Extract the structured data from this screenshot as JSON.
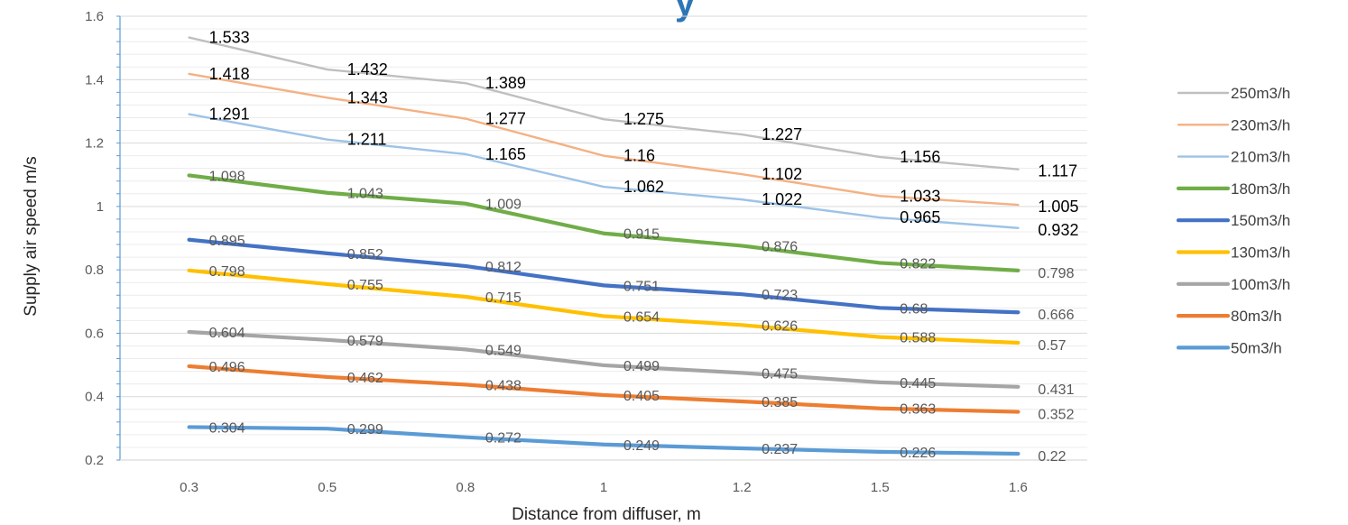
{
  "chart_data": {
    "type": "line",
    "title": "",
    "title_fragment": "y",
    "xlabel": "Distance from diffuser, m",
    "ylabel": "Supply air speed m/s",
    "categories": [
      "0.3",
      "0.5",
      "0.8",
      "1",
      "1.2",
      "1.5",
      "1.6"
    ],
    "ylim": [
      0.2,
      1.6
    ],
    "yticks": [
      "0.2",
      "0.4",
      "0.6",
      "0.8",
      "1",
      "1.2",
      "1.4",
      "1.6"
    ],
    "grid": true,
    "legend_position": "right",
    "series": [
      {
        "name": "250m3/h",
        "color": "#bfbfbf",
        "width": "thin",
        "label_style": "dark",
        "values": [
          1.533,
          1.432,
          1.389,
          1.275,
          1.227,
          1.156,
          1.117
        ]
      },
      {
        "name": "230m3/h",
        "color": "#f4b183",
        "width": "thin",
        "label_style": "dark",
        "values": [
          1.418,
          1.343,
          1.277,
          1.16,
          1.102,
          1.033,
          1.005
        ]
      },
      {
        "name": "210m3/h",
        "color": "#9dc3e6",
        "width": "thin",
        "label_style": "dark",
        "values": [
          1.291,
          1.211,
          1.165,
          1.062,
          1.022,
          0.965,
          0.932
        ]
      },
      {
        "name": "180m3/h",
        "color": "#70ad47",
        "width": "thick",
        "label_style": "gray",
        "values": [
          1.098,
          1.043,
          1.009,
          0.915,
          0.876,
          0.822,
          0.798
        ]
      },
      {
        "name": "150m3/h",
        "color": "#4472c4",
        "width": "thick",
        "label_style": "gray",
        "values": [
          0.895,
          0.852,
          0.812,
          0.751,
          0.723,
          0.68,
          0.666
        ]
      },
      {
        "name": "130m3/h",
        "color": "#ffc000",
        "width": "thick",
        "label_style": "gray",
        "values": [
          0.798,
          0.755,
          0.715,
          0.654,
          0.626,
          0.588,
          0.57
        ]
      },
      {
        "name": "100m3/h",
        "color": "#a5a5a5",
        "width": "thick",
        "label_style": "gray",
        "values": [
          0.604,
          0.579,
          0.549,
          0.499,
          0.475,
          0.445,
          0.431
        ]
      },
      {
        "name": "80m3/h",
        "color": "#ed7d31",
        "width": "thick",
        "label_style": "gray",
        "values": [
          0.496,
          0.462,
          0.438,
          0.405,
          0.385,
          0.363,
          0.352
        ]
      },
      {
        "name": "50m3/h",
        "color": "#5b9bd5",
        "width": "thick",
        "label_style": "gray",
        "values": [
          0.304,
          0.299,
          0.272,
          0.249,
          0.237,
          0.226,
          0.22
        ]
      }
    ]
  }
}
